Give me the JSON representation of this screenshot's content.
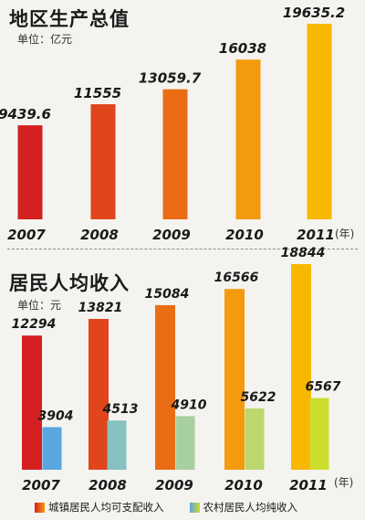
{
  "chart_data": [
    {
      "type": "bar",
      "title": "地区生产总值",
      "subtitle": "单位：亿元",
      "categories": [
        "2007",
        "2008",
        "2009",
        "2010",
        "2011"
      ],
      "series": [
        {
          "values": [
            9439.6,
            11555,
            13059.7,
            16038,
            19635.2
          ]
        }
      ],
      "value_labels": [
        "9439.6",
        "11555",
        "13059.7",
        "16038",
        "19635.2"
      ],
      "x_unit": "(年)",
      "colors": [
        "#d42020",
        "#e0451c",
        "#ea6d16",
        "#f39b0c",
        "#f8b800"
      ]
    },
    {
      "type": "bar",
      "title": "居民人均收入",
      "subtitle": "单位：元",
      "categories": [
        "2007",
        "2008",
        "2009",
        "2010",
        "2011"
      ],
      "series": [
        {
          "name": "城镇居民人均可支配收入",
          "values": [
            12294,
            13821,
            15084,
            16566,
            18844
          ],
          "labels": [
            "12294",
            "13821",
            "15084",
            "16566",
            "18844"
          ],
          "colors": [
            "#d42020",
            "#e0451c",
            "#ea6d16",
            "#f39b0c",
            "#f8b800"
          ]
        },
        {
          "name": "农村居民人均纯收入",
          "values": [
            3904,
            4513,
            4910,
            5622,
            6567
          ],
          "labels": [
            "3904",
            "4513",
            "4910",
            "5622",
            "6567"
          ],
          "colors": [
            "#5aa6e0",
            "#86c2c2",
            "#a8cf9e",
            "#bcd76e",
            "#cddd2e"
          ]
        }
      ],
      "x_unit": "(年)",
      "legend_placement": "bottom"
    }
  ]
}
